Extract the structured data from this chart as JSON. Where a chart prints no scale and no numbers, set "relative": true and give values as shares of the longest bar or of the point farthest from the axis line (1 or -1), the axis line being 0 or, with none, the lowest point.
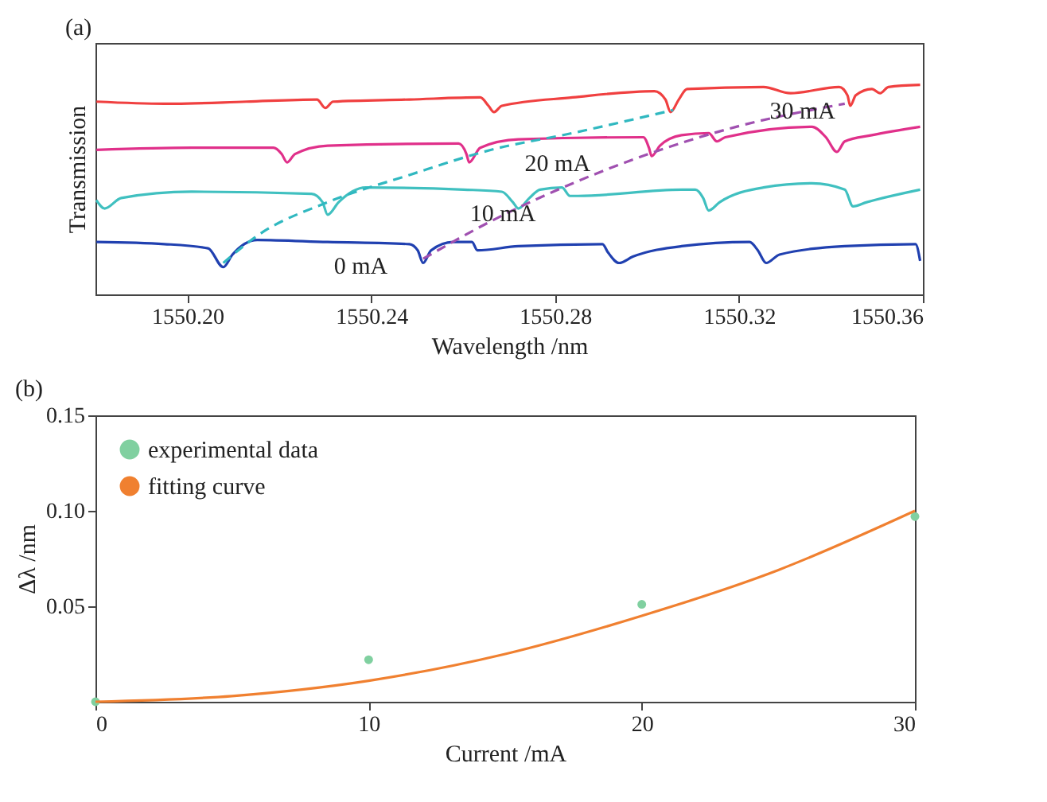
{
  "chart_data": [
    {
      "type": "line",
      "title": "(a)",
      "xlabel": "Wavelength /nm",
      "ylabel": "Transmission",
      "relative": true,
      "xlim": [
        1550.18,
        1550.36
      ],
      "xticks": [
        {
          "value": 1550.2,
          "label": "1550.20"
        },
        1550.24,
        1550.28,
        1550.32,
        1550.36
      ],
      "series": [
        {
          "name": "0 mA",
          "color": "#2040b0",
          "x": [
            1550.1802,
            1550.195,
            1550.2045,
            1550.2078,
            1550.2098,
            1550.2152,
            1550.2305,
            1550.2483,
            1550.2501,
            1550.2513,
            1550.253,
            1550.2578,
            1550.2619,
            1550.2631,
            1550.272,
            1550.2903,
            1550.2915,
            1550.2939,
            1550.2969,
            1550.3075,
            1550.3223,
            1550.3241,
            1550.3259,
            1550.3288,
            1550.343,
            1550.3584,
            1550.3594
          ],
          "values": [
            0.25,
            0.24,
            0.22,
            0.13,
            0.19,
            0.26,
            0.25,
            0.24,
            0.21,
            0.15,
            0.21,
            0.25,
            0.25,
            0.21,
            0.23,
            0.24,
            0.2,
            0.15,
            0.18,
            0.23,
            0.25,
            0.21,
            0.15,
            0.19,
            0.23,
            0.24,
            0.16
          ]
        },
        {
          "name": "10 mA",
          "color": "#40c0c0",
          "x": [
            1550.1802,
            1550.182,
            1550.1856,
            1550.2009,
            1550.227,
            1550.2294,
            1550.2305,
            1550.2329,
            1550.2388,
            1550.2601,
            1550.2684,
            1550.2708,
            1550.272,
            1550.2744,
            1550.2767,
            1550.2815,
            1550.2832,
            1550.285,
            1550.3075,
            1550.3105,
            1550.3122,
            1550.3134,
            1550.3158,
            1550.3253,
            1550.3359,
            1550.343,
            1550.3448,
            1550.3478,
            1550.3594
          ],
          "values": [
            0.45,
            0.41,
            0.46,
            0.49,
            0.48,
            0.44,
            0.38,
            0.44,
            0.51,
            0.5,
            0.49,
            0.44,
            0.41,
            0.46,
            0.5,
            0.51,
            0.47,
            0.47,
            0.5,
            0.5,
            0.46,
            0.4,
            0.44,
            0.51,
            0.53,
            0.5,
            0.42,
            0.44,
            0.5
          ]
        },
        {
          "name": "20 mA",
          "color": "#e0308a",
          "x": [
            1550.1802,
            1550.2009,
            1550.2187,
            1550.2205,
            1550.2217,
            1550.2234,
            1550.2305,
            1550.259,
            1550.2607,
            1550.2613,
            1550.2637,
            1550.272,
            1550.2992,
            1550.3004,
            1550.301,
            1550.3028,
            1550.3075,
            1550.3134,
            1550.3152,
            1550.317,
            1550.3359,
            1550.3389,
            1550.3413,
            1550.343,
            1550.3489,
            1550.3594
          ],
          "values": [
            0.69,
            0.7,
            0.7,
            0.67,
            0.63,
            0.67,
            0.71,
            0.72,
            0.67,
            0.63,
            0.7,
            0.74,
            0.75,
            0.7,
            0.66,
            0.71,
            0.76,
            0.77,
            0.73,
            0.75,
            0.8,
            0.75,
            0.68,
            0.73,
            0.76,
            0.8
          ]
        },
        {
          "name": "30 mA",
          "color": "#f04040",
          "x": [
            1550.1802,
            1550.195,
            1550.1974,
            1550.2128,
            1550.2282,
            1550.23,
            1550.2317,
            1550.2483,
            1550.2637,
            1550.2655,
            1550.2667,
            1550.2684,
            1550.2838,
            1550.3016,
            1550.304,
            1550.3051,
            1550.3069,
            1550.3087,
            1550.3253,
            1550.3312,
            1550.3418,
            1550.3436,
            1550.3442,
            1550.3454,
            1550.3489,
            1550.3507,
            1550.3525,
            1550.3594
          ],
          "values": [
            0.92,
            0.91,
            0.91,
            0.92,
            0.93,
            0.89,
            0.92,
            0.93,
            0.94,
            0.9,
            0.87,
            0.9,
            0.94,
            0.97,
            0.93,
            0.87,
            0.93,
            0.98,
            0.99,
            0.96,
            0.99,
            0.95,
            0.9,
            0.95,
            0.98,
            0.96,
            0.99,
            1.0
          ]
        },
        {
          "color": "#30b8c0",
          "line_style": "dashed",
          "x": [
            1550.2078,
            1550.2152,
            1550.2305,
            1550.2483,
            1550.2661,
            1550.2838,
            1550.3057
          ],
          "values": [
            0.15,
            0.28,
            0.44,
            0.57,
            0.69,
            0.77,
            0.88
          ]
        },
        {
          "color": "#a050b0",
          "line_style": "dashed",
          "x": [
            1550.2513,
            1550.2661,
            1550.2838,
            1550.3016,
            1550.3194,
            1550.343
          ],
          "values": [
            0.17,
            0.35,
            0.53,
            0.68,
            0.8,
            0.91
          ]
        }
      ]
    },
    {
      "type": "scatter",
      "title": "(b)",
      "xlabel": "Current /mA",
      "ylabel": "Δλ /nm",
      "xlim": [
        0,
        30
      ],
      "xticks": [
        0,
        10,
        20,
        30
      ],
      "ylim": [
        0,
        0.15
      ],
      "yticks": [
        0.05,
        {
          "value": 0.1,
          "label": "0.10"
        },
        0.15
      ],
      "legend": "top left",
      "series": [
        {
          "name": "experimental data",
          "marker": "circle",
          "color": "#80d0a0",
          "x": [
            0,
            10,
            20,
            30
          ],
          "values": [
            0,
            0.022,
            0.051,
            0.097
          ]
        },
        {
          "name": "fitting curve",
          "type": "line",
          "color": "#f08030",
          "x": [
            0,
            5,
            10,
            15,
            20,
            25,
            30
          ],
          "values": [
            0,
            0.003,
            0.011,
            0.025,
            0.045,
            0.069,
            0.1
          ]
        }
      ]
    }
  ]
}
